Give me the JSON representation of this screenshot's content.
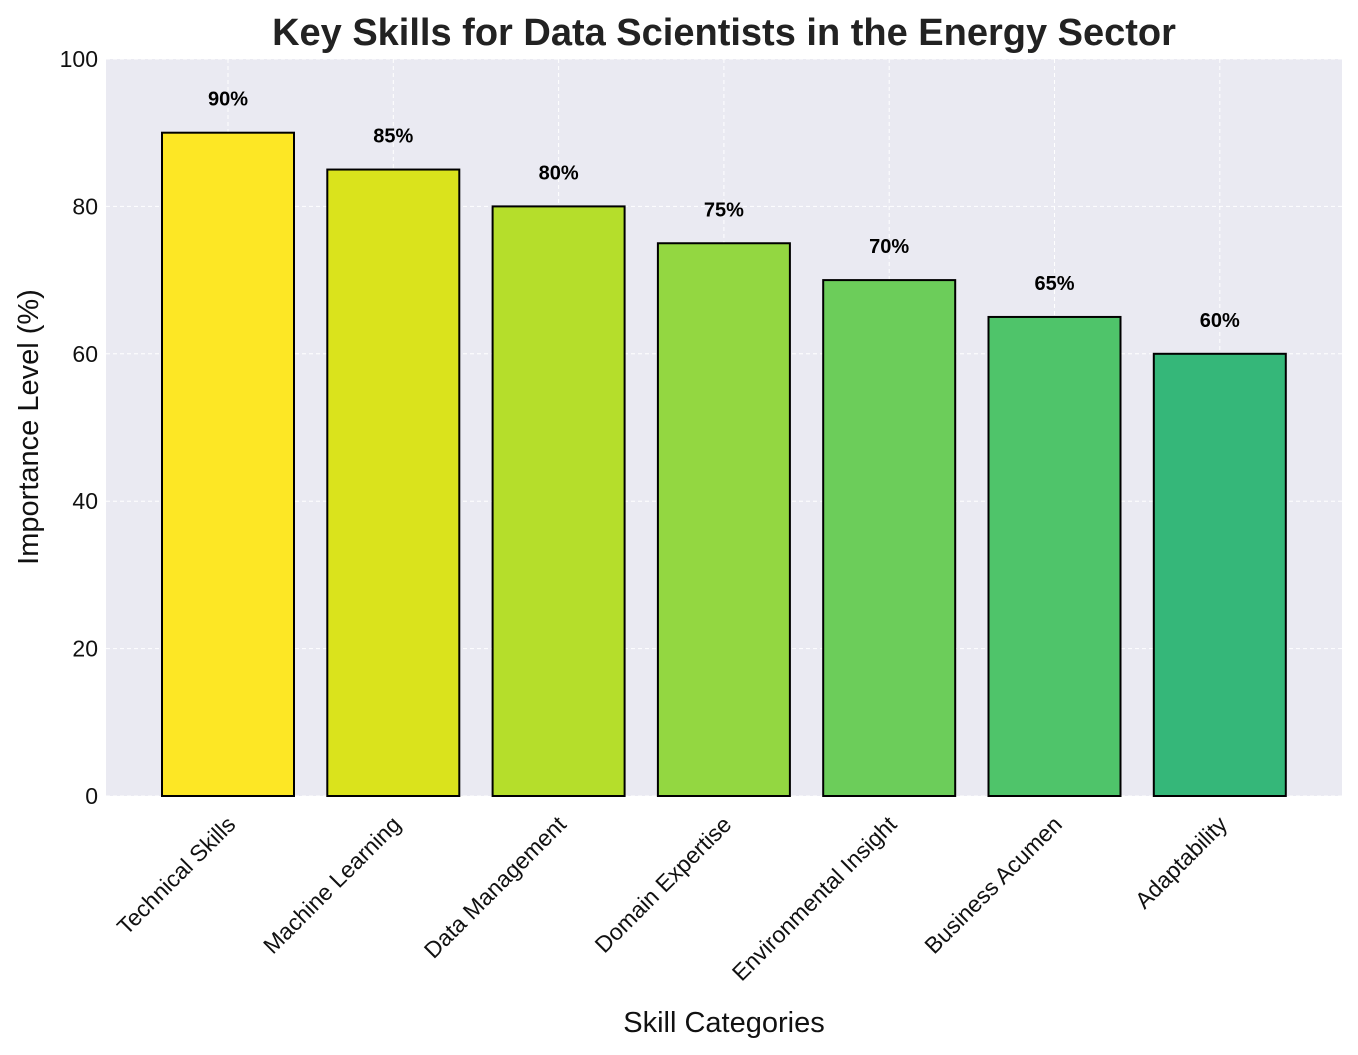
{
  "chart_data": {
    "type": "bar",
    "title": "Key Skills for Data Scientists in the Energy Sector",
    "xlabel": "Skill Categories",
    "ylabel": "Importance Level (%)",
    "ylim": [
      0,
      100
    ],
    "yticks": [
      "0",
      "20",
      "40",
      "60",
      "80",
      "100"
    ],
    "grid": true,
    "categories": [
      "Technical Skills",
      "Machine Learning",
      "Data Management",
      "Domain Expertise",
      "Environmental Insight",
      "Business Acumen",
      "Adaptability"
    ],
    "values": [
      90,
      85,
      80,
      75,
      70,
      65,
      60
    ],
    "value_labels": [
      "90%",
      "85%",
      "80%",
      "75%",
      "70%",
      "65%",
      "60%"
    ],
    "colors": [
      "#fde725",
      "#dae31c",
      "#b5de2b",
      "#93d741",
      "#6ccd5a",
      "#4fc46a",
      "#35b779"
    ],
    "background": "#eaeaf2",
    "edge_color": "#000000"
  }
}
